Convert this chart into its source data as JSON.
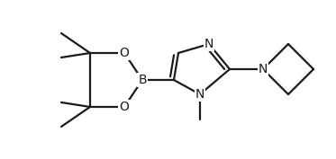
{
  "bg_color": "#ffffff",
  "line_color": "#1a1a1a",
  "line_width": 1.6,
  "font_size": 10,
  "figsize": [
    3.73,
    1.77
  ],
  "dpi": 100,
  "xlim": [
    0,
    373
  ],
  "ylim": [
    0,
    177
  ]
}
